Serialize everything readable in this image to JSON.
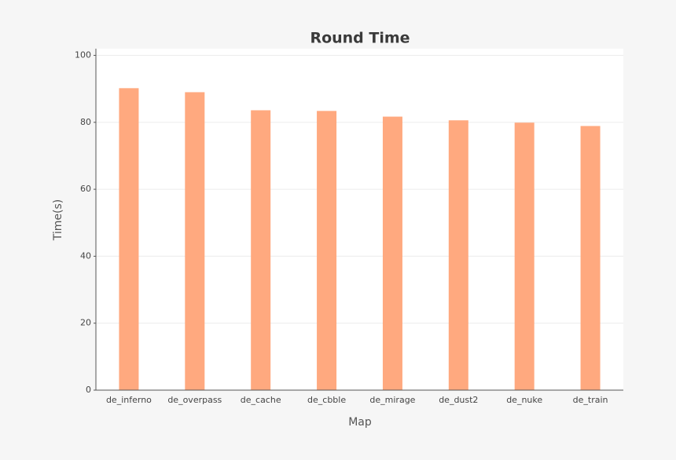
{
  "chart_data": {
    "type": "bar",
    "title": "Round Time",
    "x_label": "Map",
    "y_label": "Time(s)",
    "categories": [
      "de_inferno",
      "de_overpass",
      "de_cache",
      "de_cbble",
      "de_mirage",
      "de_dust2",
      "de_nuke",
      "de_train"
    ],
    "values": [
      90.2,
      89.0,
      83.6,
      83.4,
      81.7,
      80.6,
      79.9,
      78.9
    ],
    "color": "#ffa97f",
    "ylim": [
      0,
      102
    ],
    "yticks": [
      0,
      20,
      40,
      60,
      80,
      100
    ],
    "grid": true
  }
}
